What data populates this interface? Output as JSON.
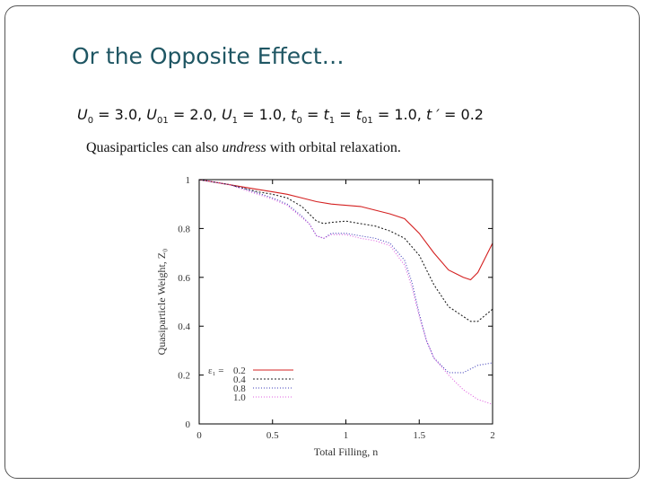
{
  "slide": {
    "title": "Or the Opposite Effect…",
    "params": {
      "U0_sym": "U",
      "U0_sub": "0",
      "U0_val": " = 3.0, ",
      "U01_sym": "U",
      "U01_sub": "01",
      "U01_val": " = 2.0, ",
      "U1_sym": "U",
      "U1_sub": "1",
      "U1_val": " = 1.0, ",
      "t0_sym": "t",
      "t0_sub": "0",
      "eq1": " = ",
      "t1_sym": "t",
      "t1_sub": "1",
      "eq2": " = ",
      "t01_sym": "t",
      "t01_sub": "01",
      "t01_val": " = 1.0, ",
      "tp_sym": "t ′",
      "tp_val": " = 0.2"
    },
    "subtitle_a": "Quasiparticles can also ",
    "subtitle_em": "undress",
    "subtitle_b": " with orbital relaxation."
  },
  "chart_data": {
    "type": "line",
    "xlabel": "Total Filling, n",
    "ylabel": "Quasiparticle Weight, Z₀",
    "xlim": [
      0,
      2
    ],
    "ylim": [
      0,
      1
    ],
    "xticks": [
      "0",
      "0.5",
      "1",
      "1.5",
      "2"
    ],
    "yticks": [
      "0",
      "0.2",
      "0.4",
      "0.6",
      "0.8",
      "1"
    ],
    "legend_title": "ε₁ =",
    "legend_position": "bottom-left",
    "series": [
      {
        "name": "0.2",
        "color": "#d42020",
        "dash": "none",
        "x": [
          0,
          0.1,
          0.2,
          0.3,
          0.4,
          0.5,
          0.6,
          0.7,
          0.8,
          0.9,
          1.0,
          1.1,
          1.2,
          1.3,
          1.4,
          1.5,
          1.6,
          1.7,
          1.8,
          1.85,
          1.9,
          2.0
        ],
        "y": [
          1.0,
          0.99,
          0.98,
          0.97,
          0.96,
          0.95,
          0.94,
          0.925,
          0.91,
          0.9,
          0.895,
          0.89,
          0.875,
          0.86,
          0.84,
          0.78,
          0.7,
          0.63,
          0.6,
          0.59,
          0.62,
          0.74
        ]
      },
      {
        "name": "0.4",
        "color": "#222222",
        "dash": "2,2",
        "x": [
          0,
          0.1,
          0.2,
          0.3,
          0.4,
          0.5,
          0.6,
          0.7,
          0.8,
          0.85,
          0.9,
          1.0,
          1.1,
          1.2,
          1.3,
          1.4,
          1.5,
          1.6,
          1.7,
          1.8,
          1.85,
          1.9,
          2.0
        ],
        "y": [
          1.0,
          0.99,
          0.98,
          0.965,
          0.95,
          0.94,
          0.925,
          0.89,
          0.83,
          0.82,
          0.825,
          0.83,
          0.82,
          0.81,
          0.79,
          0.76,
          0.69,
          0.57,
          0.48,
          0.44,
          0.42,
          0.42,
          0.47
        ]
      },
      {
        "name": "0.8",
        "color": "#3f3fb8",
        "dash": "1,2",
        "x": [
          0,
          0.1,
          0.2,
          0.3,
          0.4,
          0.5,
          0.6,
          0.7,
          0.75,
          0.8,
          0.85,
          0.9,
          1.0,
          1.1,
          1.2,
          1.3,
          1.4,
          1.45,
          1.5,
          1.55,
          1.6,
          1.7,
          1.8,
          1.9,
          2.0
        ],
        "y": [
          1.0,
          0.99,
          0.98,
          0.965,
          0.945,
          0.925,
          0.9,
          0.85,
          0.82,
          0.77,
          0.76,
          0.78,
          0.78,
          0.77,
          0.76,
          0.74,
          0.67,
          0.58,
          0.45,
          0.34,
          0.27,
          0.21,
          0.21,
          0.24,
          0.25
        ]
      },
      {
        "name": "1.0",
        "color": "#e060e0",
        "dash": "1,2",
        "x": [
          0,
          0.1,
          0.2,
          0.3,
          0.4,
          0.5,
          0.6,
          0.7,
          0.75,
          0.8,
          0.85,
          0.9,
          1.0,
          1.1,
          1.2,
          1.3,
          1.4,
          1.45,
          1.5,
          1.55,
          1.6,
          1.7,
          1.8,
          1.9,
          2.0
        ],
        "y": [
          1.0,
          0.99,
          0.98,
          0.96,
          0.94,
          0.92,
          0.895,
          0.845,
          0.82,
          0.77,
          0.76,
          0.775,
          0.775,
          0.76,
          0.75,
          0.73,
          0.65,
          0.56,
          0.44,
          0.34,
          0.27,
          0.2,
          0.14,
          0.1,
          0.08
        ]
      }
    ]
  }
}
